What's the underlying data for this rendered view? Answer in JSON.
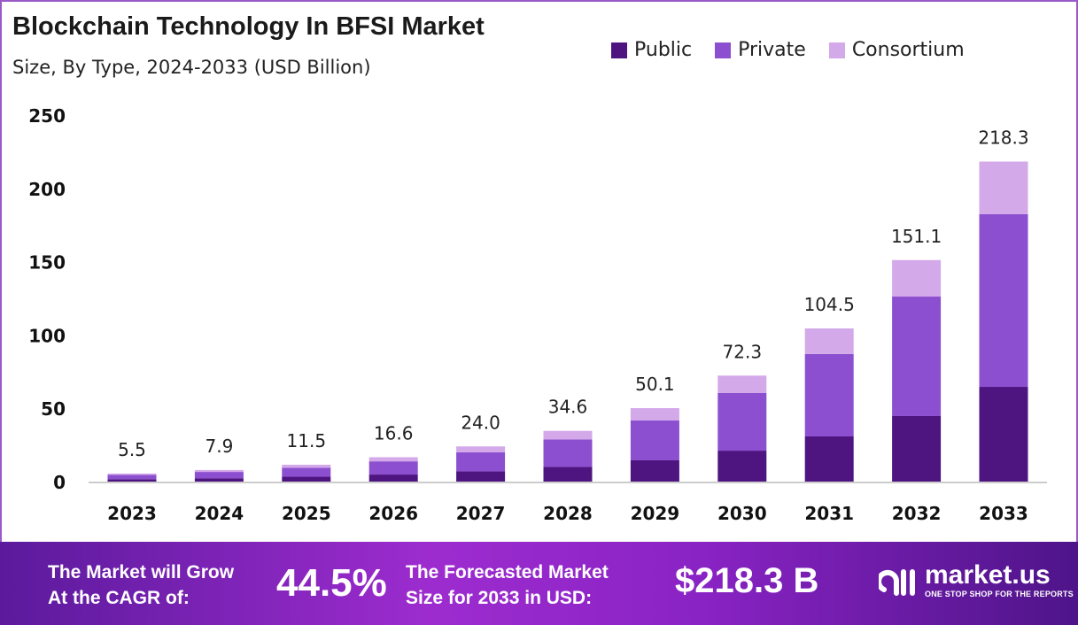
{
  "chart_data": {
    "type": "bar",
    "stacked": true,
    "title": "Blockchain Technology In BFSI Market",
    "subtitle": "Size, By Type, 2024-2033 (USD Billion)",
    "categories": [
      "2023",
      "2024",
      "2025",
      "2026",
      "2027",
      "2028",
      "2029",
      "2030",
      "2031",
      "2032",
      "2033"
    ],
    "series": [
      {
        "name": "Public",
        "color": "#4e1581",
        "values": [
          1.6,
          2.3,
          3.3,
          4.8,
          7.0,
          10.0,
          14.5,
          21.1,
          30.8,
          44.7,
          64.6
        ]
      },
      {
        "name": "Private",
        "color": "#8c4fcf",
        "values": [
          3.0,
          4.3,
          6.2,
          9.0,
          13.0,
          18.7,
          27.2,
          39.3,
          56.2,
          81.5,
          117.8
        ]
      },
      {
        "name": "Consortium",
        "color": "#d3a9ea",
        "values": [
          0.9,
          1.3,
          2.0,
          2.8,
          4.0,
          5.9,
          8.4,
          11.9,
          17.5,
          24.9,
          35.9
        ]
      }
    ],
    "totals": [
      "5.5",
      "7.9",
      "11.5",
      "16.6",
      "24.0",
      "34.6",
      "50.1",
      "72.3",
      "104.5",
      "151.1",
      "218.3"
    ],
    "yticks": [
      "0",
      "50",
      "100",
      "150",
      "200",
      "250"
    ],
    "ylim": [
      0,
      250
    ],
    "grid": false,
    "legend": "top-right"
  },
  "footer": {
    "cagr_label_1": "The Market will Grow",
    "cagr_label_2": "At the CAGR of:",
    "cagr_value": "44.5%",
    "size_label_1": "The Forecasted Market",
    "size_label_2": "Size for 2033 in USD:",
    "size_value": "$218.3 B",
    "logo_text": "market.us",
    "logo_tagline": "ONE STOP SHOP FOR THE REPORTS"
  }
}
